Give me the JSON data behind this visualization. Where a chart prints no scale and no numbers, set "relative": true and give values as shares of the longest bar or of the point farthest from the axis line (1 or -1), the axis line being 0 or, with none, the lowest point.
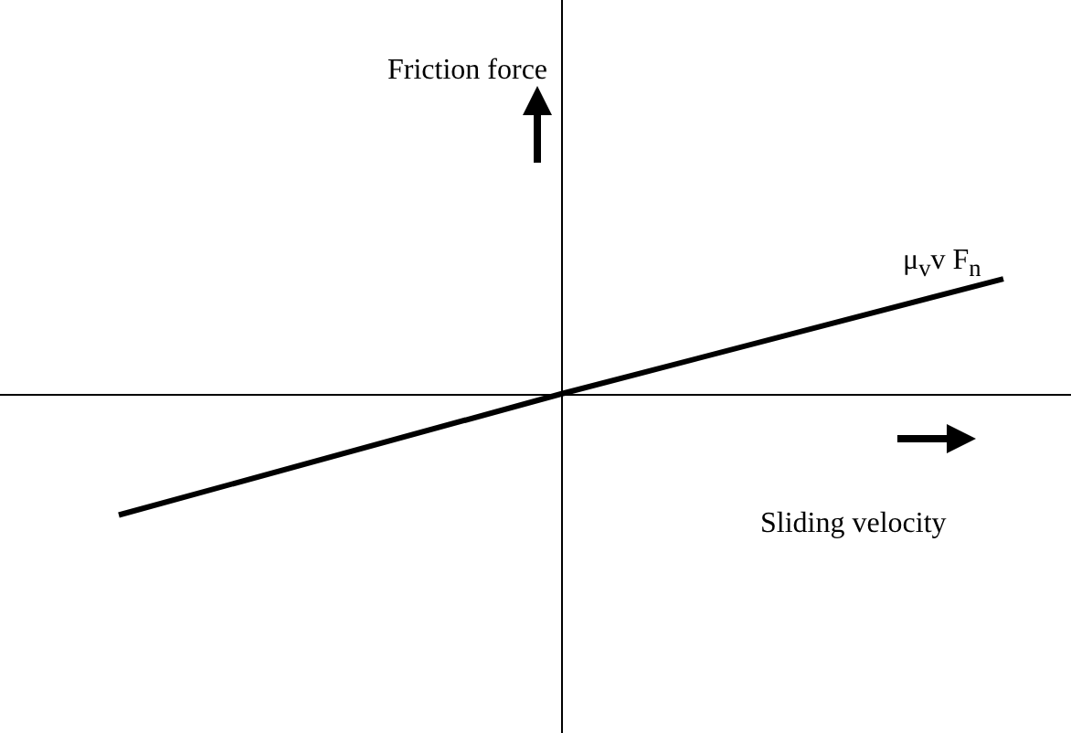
{
  "chart_data": {
    "type": "line",
    "relative": true,
    "annotations": [
      "Friction force",
      "Sliding velocity",
      "μ$_{v}$v F$_{n}$"
    ],
    "categories": [
      null,
      null,
      null
    ],
    "marker": "none",
    "series": [
      {
        "color": "#000000",
        "values": [
          -1,
          0,
          0.95
        ]
      }
    ]
  }
}
